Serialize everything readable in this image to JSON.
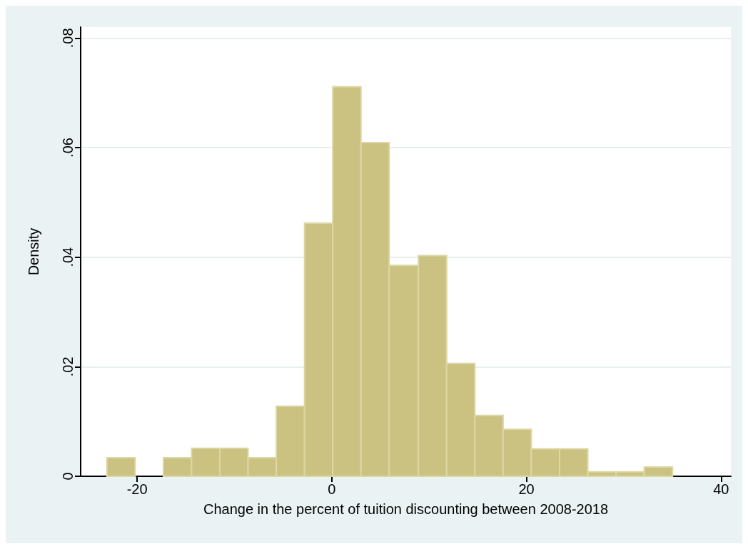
{
  "chart_data": {
    "type": "histogram",
    "xlabel": "Change in the percent of tuition discounting between 2008-2018",
    "ylabel": "Density",
    "bins": [
      -23.1,
      -20.2,
      -17.3,
      -14.4,
      -11.5,
      -8.6,
      -5.7,
      -2.8,
      0.1,
      3.0,
      5.9,
      8.9,
      11.8,
      14.7,
      17.6,
      20.5,
      23.4,
      26.3,
      29.2,
      32.1,
      35.0
    ],
    "values": [
      0.0034,
      0,
      0.0034,
      0.0051,
      0.0051,
      0.0034,
      0.0128,
      0.0462,
      0.0711,
      0.0609,
      0.0385,
      0.0403,
      0.0206,
      0.0111,
      0.0086,
      0.005,
      0.005,
      0.0008,
      0.0008,
      0.0017
    ],
    "color": "#cbc282",
    "xlim": [
      -25.8,
      41
    ],
    "xticks": [
      -20,
      0,
      20,
      40
    ],
    "ylim": [
      0,
      0.082
    ],
    "yticks": [
      {
        "value": 0,
        "label": "0"
      },
      {
        "value": 0.02,
        "label": ".02"
      },
      {
        "value": 0.04,
        "label": ".04"
      },
      {
        "value": 0.06,
        "label": ".06"
      },
      {
        "value": 0.08,
        "label": ".08"
      }
    ],
    "grid": "y"
  }
}
